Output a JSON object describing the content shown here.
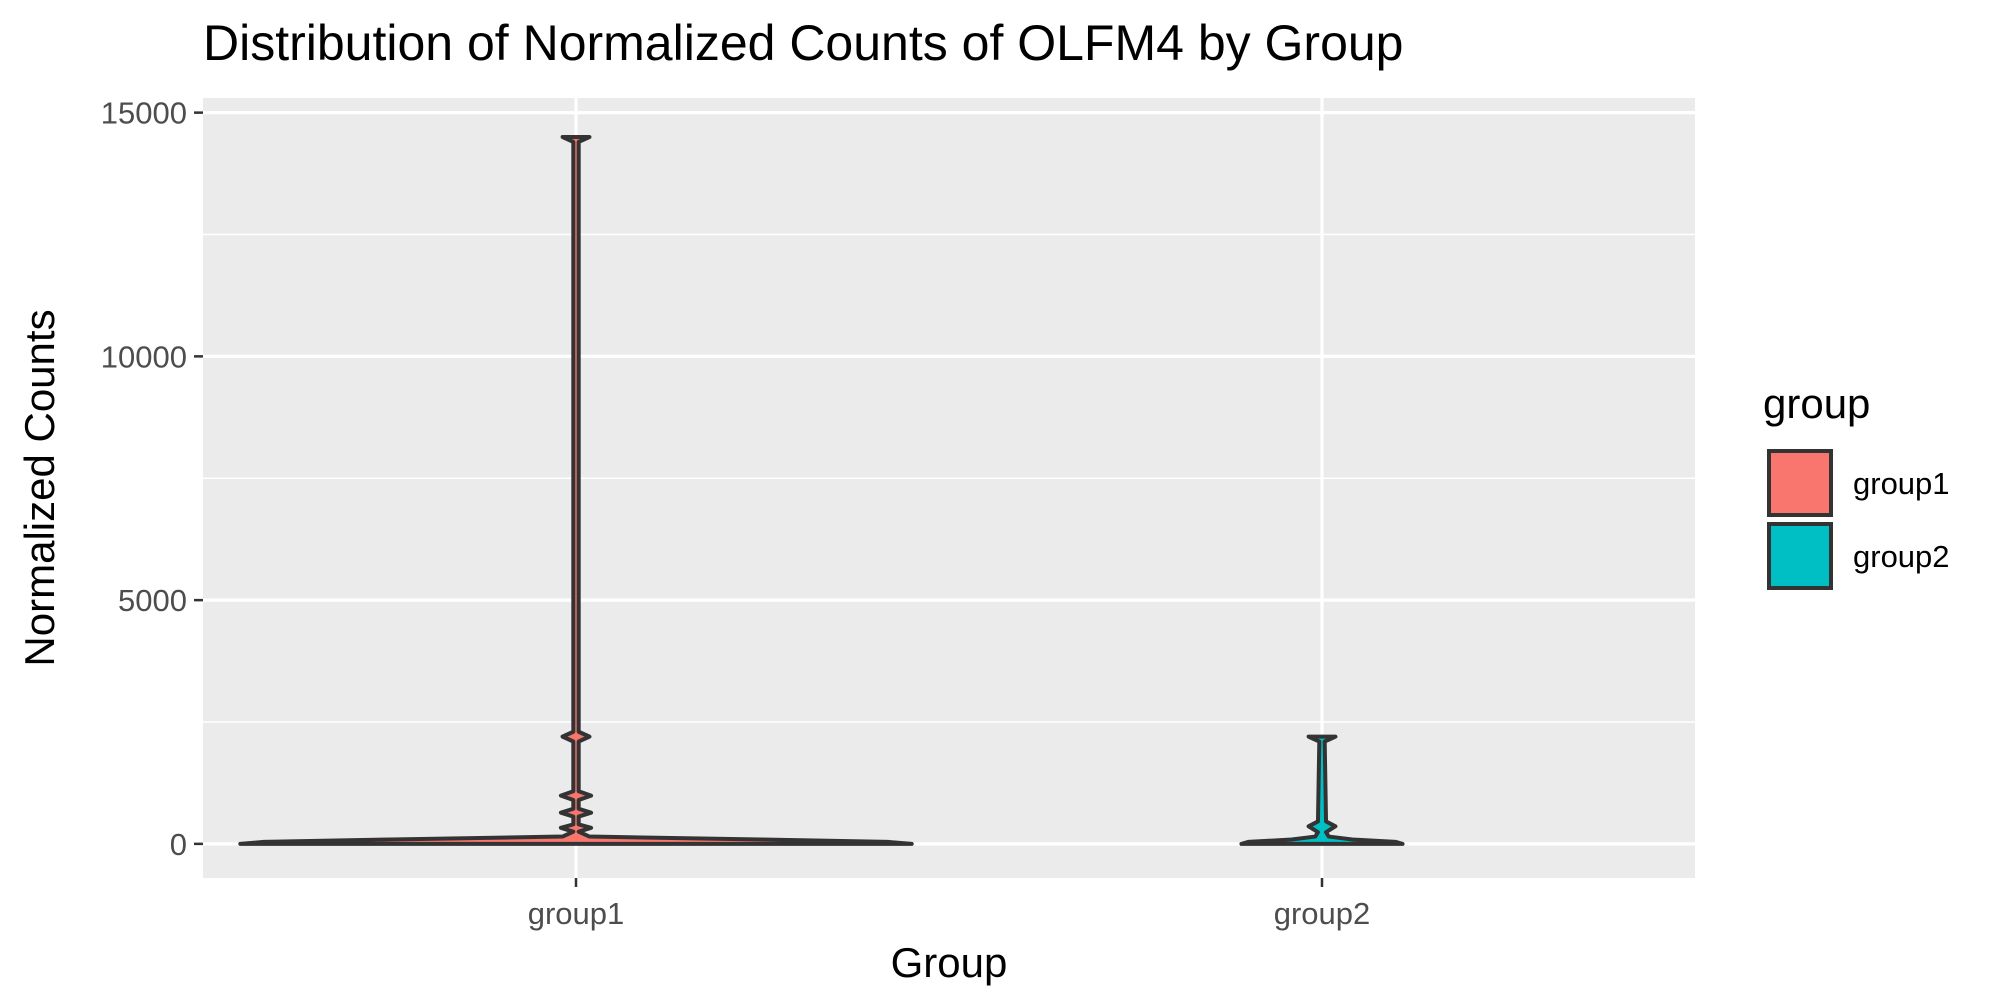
{
  "chart_data": {
    "type": "violin",
    "title": "Distribution of Normalized Counts of OLFM4 by Group",
    "xlabel": "Group",
    "ylabel": "Normalized Counts",
    "categories": [
      "group1",
      "group2"
    ],
    "ylim": [
      -700,
      15300
    ],
    "yticks": [
      0,
      5000,
      10000,
      15000
    ],
    "ytick_labels": [
      "0",
      "5000",
      "10000",
      "15000"
    ],
    "grid": true,
    "legend": {
      "title": "group",
      "position": "right",
      "entries": [
        "group1",
        "group2"
      ]
    },
    "colors": {
      "group1": "#F8766D",
      "group2": "#00BFC4",
      "outline": "#333333",
      "panel": "#EBEBEB",
      "grid": "#FFFFFF"
    },
    "series": [
      {
        "name": "group1",
        "min": 0,
        "max": 14500,
        "density": [
          {
            "y": 0,
            "hw": 1.0
          },
          {
            "y": 40,
            "hw": 0.93
          },
          {
            "y": 90,
            "hw": 0.55
          },
          {
            "y": 150,
            "hw": 0.04
          },
          {
            "y": 250,
            "hw": 0.008
          },
          {
            "y": 330,
            "hw": 0.045
          },
          {
            "y": 400,
            "hw": 0.008
          },
          {
            "y": 560,
            "hw": 0.008
          },
          {
            "y": 640,
            "hw": 0.045
          },
          {
            "y": 720,
            "hw": 0.008
          },
          {
            "y": 900,
            "hw": 0.008
          },
          {
            "y": 990,
            "hw": 0.045
          },
          {
            "y": 1080,
            "hw": 0.008
          },
          {
            "y": 2100,
            "hw": 0.008
          },
          {
            "y": 2200,
            "hw": 0.04
          },
          {
            "y": 2300,
            "hw": 0.008
          },
          {
            "y": 14400,
            "hw": 0.008
          },
          {
            "y": 14500,
            "hw": 0.04
          }
        ]
      },
      {
        "name": "group2",
        "min": 0,
        "max": 2200,
        "density": [
          {
            "y": 0,
            "hw": 0.24
          },
          {
            "y": 40,
            "hw": 0.22
          },
          {
            "y": 90,
            "hw": 0.09
          },
          {
            "y": 150,
            "hw": 0.02
          },
          {
            "y": 240,
            "hw": 0.012
          },
          {
            "y": 360,
            "hw": 0.04
          },
          {
            "y": 460,
            "hw": 0.012
          },
          {
            "y": 2100,
            "hw": 0.008
          },
          {
            "y": 2200,
            "hw": 0.04
          }
        ]
      }
    ]
  }
}
